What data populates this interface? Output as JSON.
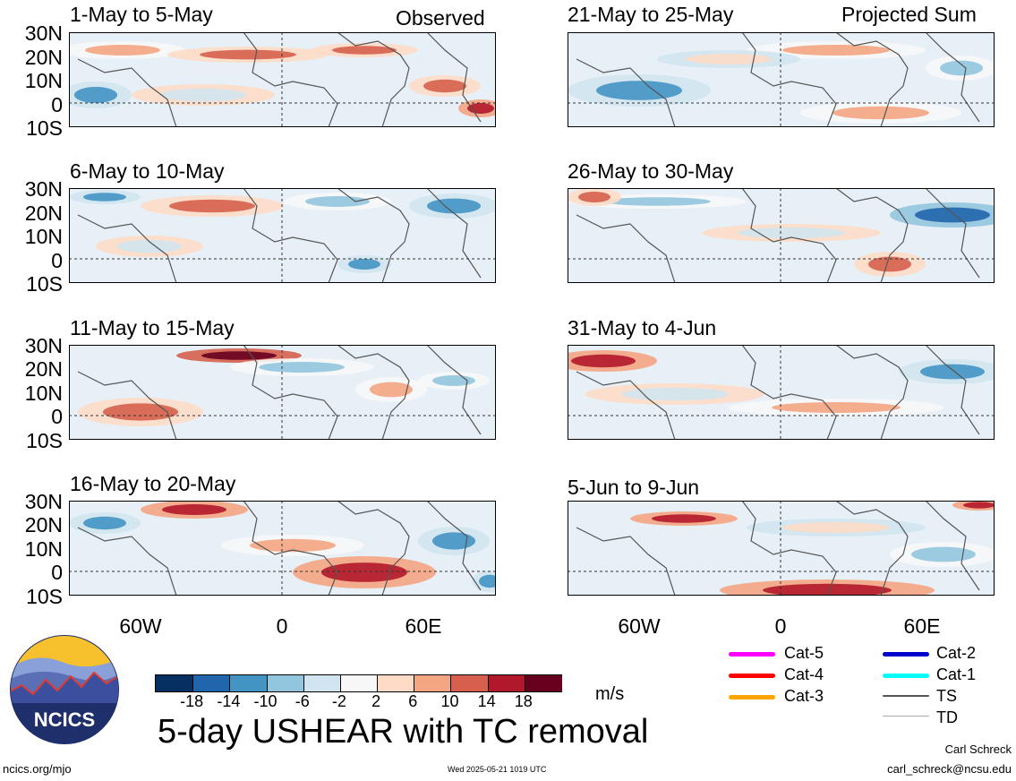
{
  "panels": [
    {
      "title": "1-May to 5-May",
      "tag": "Observed"
    },
    {
      "title": "6-May to 10-May",
      "tag": ""
    },
    {
      "title": "11-May to 15-May",
      "tag": ""
    },
    {
      "title": "16-May to 20-May",
      "tag": ""
    },
    {
      "title": "21-May to 25-May",
      "tag": "Projected Sum"
    },
    {
      "title": "26-May to 30-May",
      "tag": ""
    },
    {
      "title": "31-May to 4-Jun",
      "tag": ""
    },
    {
      "title": "5-Jun to 9-Jun",
      "tag": ""
    }
  ],
  "lat_labels": [
    "30N",
    "20N",
    "10N",
    "0",
    "10S"
  ],
  "lon_labels": [
    "60W",
    "0",
    "60E"
  ],
  "colorbar": {
    "colors": [
      "#053061",
      "#2166ac",
      "#4393c3",
      "#92c5de",
      "#d1e5f0",
      "#f7f7f7",
      "#fddbc7",
      "#f4a582",
      "#d6604d",
      "#b2182b",
      "#67001f"
    ],
    "ticks": [
      "-18",
      "-14",
      "-10",
      "-6",
      "-2",
      "2",
      "6",
      "10",
      "14",
      "18"
    ],
    "unit": "m/s"
  },
  "legend": [
    {
      "label": "Cat-5",
      "color": "#ff00ff"
    },
    {
      "label": "Cat-4",
      "color": "#ff0000"
    },
    {
      "label": "Cat-3",
      "color": "#ffa500"
    },
    {
      "label": "Cat-2",
      "color": "#0000cd"
    },
    {
      "label": "Cat-1",
      "color": "#00ffff"
    },
    {
      "label": "TS",
      "color": "#555555"
    },
    {
      "label": "TD",
      "color": "#aaaaaa"
    }
  ],
  "main_title": "5-day USHEAR with TC removal",
  "logo_text": "NCICS",
  "footer": {
    "left": "ncics.org/mjo",
    "center": "Wed 2025-05-21 1019 UTC",
    "author": "Carl Schreck",
    "email": "carl_schreck@ncsu.edu"
  }
}
